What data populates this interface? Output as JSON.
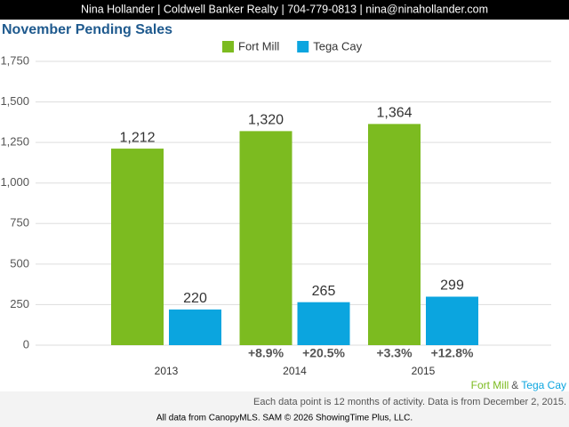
{
  "header": {
    "text": "Nina Hollander | Coldwell Banker Realty | 704-779-0813 | nina@ninahollander.com"
  },
  "chart_data": {
    "type": "bar",
    "title": "November Pending Sales",
    "categories": [
      "2013",
      "2014",
      "2015"
    ],
    "series": [
      {
        "name": "Fort Mill",
        "color": "#7cbb20",
        "values": [
          1212,
          1320,
          1364
        ],
        "value_labels": [
          "1,212",
          "1,320",
          "1,364"
        ],
        "change_labels": [
          null,
          "+8.9%",
          "+3.3%"
        ]
      },
      {
        "name": "Tega Cay",
        "color": "#0ba5df",
        "values": [
          220,
          265,
          299
        ],
        "value_labels": [
          "220",
          "265",
          "299"
        ],
        "change_labels": [
          null,
          "+20.5%",
          "+12.8%"
        ]
      }
    ],
    "ylim": [
      0,
      1750
    ],
    "yticks": [
      0,
      250,
      500,
      750,
      {
        "value": 1000,
        "label": "1,000"
      },
      {
        "value": 1250,
        "label": "1,250"
      },
      {
        "value": 1500,
        "label": "1,500"
      },
      {
        "value": 1750,
        "label": "1,750"
      }
    ],
    "grid": true,
    "legend": "top"
  },
  "footer": {
    "separator": "&",
    "note": "Each data point is 12 months of activity. Data is from December 2, 2015.",
    "credit": "All data from CanopyMLS. SAM © 2026 ShowingTime Plus, LLC."
  }
}
